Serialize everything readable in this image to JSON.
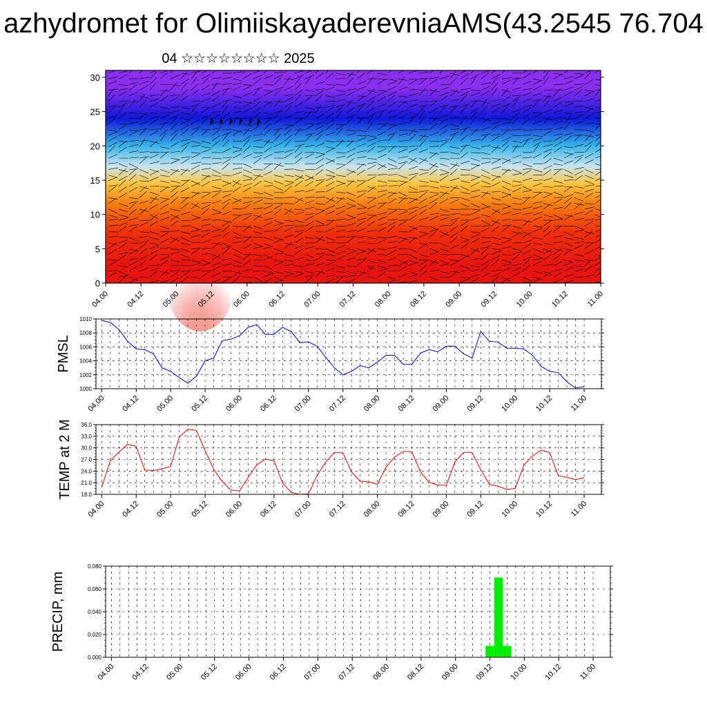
{
  "page": {
    "title": "azhydromet for OlimiiskayaderevniaAMS(43.2545 76.704",
    "subtitle": "04 ☆☆☆☆☆☆☆☆ 2025"
  },
  "chart_data": [
    {
      "type": "heatmap",
      "title": "",
      "description_kind": "time-height cross-section with wind barbs",
      "x_tick_labels": [
        "04.00",
        "04.12",
        "05.00",
        "05.12",
        "06.00",
        "06.12",
        "07.00",
        "07.12",
        "08.00",
        "08.12",
        "09.00",
        "09.12",
        "10.00",
        "10.12",
        "11.00"
      ],
      "y_ticks": [
        0,
        5,
        10,
        15,
        20,
        25,
        30
      ],
      "ylim": [
        0,
        31
      ],
      "color_bands": [
        {
          "from": 0,
          "to": 5,
          "color": "#e81410"
        },
        {
          "from": 5,
          "to": 10,
          "color": "#f0300c"
        },
        {
          "from": 10,
          "to": 13,
          "color": "#f57d10"
        },
        {
          "from": 13,
          "to": 16,
          "color": "#fbc540"
        },
        {
          "from": 16,
          "to": 18,
          "color": "#c8e4f0"
        },
        {
          "from": 18,
          "to": 22,
          "color": "#38b4e8"
        },
        {
          "from": 22,
          "to": 26,
          "color": "#1018d8"
        },
        {
          "from": 26,
          "to": 31,
          "color": "#8a2ef0"
        }
      ]
    },
    {
      "type": "line",
      "ylabel": "PMSL",
      "ylim": [
        1000,
        1010
      ],
      "y_ticks": [
        1000,
        1002,
        1004,
        1006,
        1008,
        1010
      ],
      "x_tick_labels": [
        "04.00",
        "04.12",
        "05.00",
        "05.12",
        "06.00",
        "06.12",
        "07.00",
        "07.12",
        "08.00",
        "08.12",
        "09.00",
        "09.12",
        "10.00",
        "10.12",
        "11.00"
      ],
      "x_range_hours": [
        -2,
        174
      ],
      "line_color": "#0000ff",
      "x_hours": [
        0,
        3,
        6,
        9,
        12,
        15,
        18,
        21,
        24,
        27,
        30,
        33,
        36,
        39,
        42,
        45,
        48,
        51,
        54,
        57,
        60,
        63,
        66,
        69,
        72,
        75,
        78,
        81,
        84,
        87,
        90,
        93,
        96,
        99,
        102,
        105,
        108,
        111,
        114,
        117,
        120,
        123,
        126,
        129,
        132,
        135,
        138,
        141,
        144,
        147,
        150,
        153,
        156,
        159,
        162,
        165,
        168
      ],
      "values": [
        1009.8,
        1009.5,
        1008.5,
        1006.8,
        1005.7,
        1005.6,
        1005.0,
        1003.0,
        1002.5,
        1001.6,
        1000.8,
        1001.8,
        1004.0,
        1004.4,
        1006.9,
        1007.1,
        1007.6,
        1008.8,
        1009.2,
        1007.8,
        1007.8,
        1008.8,
        1008.2,
        1006.6,
        1006.7,
        1006.1,
        1004.5,
        1003.0,
        1002.0,
        1002.5,
        1003.3,
        1003.0,
        1003.8,
        1004.8,
        1004.8,
        1003.5,
        1003.5,
        1005.1,
        1005.6,
        1005.3,
        1006.1,
        1006.1,
        1005.0,
        1004.4,
        1008.2,
        1006.8,
        1006.7,
        1005.8,
        1005.8,
        1005.7,
        1004.8,
        1003.2,
        1002.5,
        1002.3,
        1001.0,
        1000.1,
        1000.3
      ]
    },
    {
      "type": "line",
      "ylabel": "TEMP at 2 M",
      "ylim": [
        18,
        36
      ],
      "y_ticks": [
        18.0,
        21.0,
        24.0,
        27.0,
        30.0,
        33.0,
        36.0
      ],
      "x_tick_labels": [
        "04.00",
        "04.12",
        "05.00",
        "05.12",
        "06.00",
        "06.12",
        "07.00",
        "07.12",
        "08.00",
        "08.12",
        "09.00",
        "09.12",
        "10.00",
        "10.12",
        "11.00"
      ],
      "x_range_hours": [
        -2,
        174
      ],
      "line_color": "#ff0000",
      "x_hours": [
        0,
        3,
        6,
        9,
        12,
        15,
        18,
        21,
        24,
        27,
        30,
        33,
        36,
        39,
        42,
        45,
        48,
        51,
        54,
        57,
        60,
        63,
        66,
        69,
        72,
        75,
        78,
        81,
        84,
        87,
        90,
        93,
        96,
        99,
        102,
        105,
        108,
        111,
        114,
        117,
        120,
        123,
        126,
        129,
        132,
        135,
        138,
        141,
        144,
        147,
        150,
        153,
        156,
        159,
        162,
        165,
        168
      ],
      "values": [
        19.8,
        26.7,
        28.9,
        30.9,
        30.4,
        24.3,
        24.1,
        24.6,
        25.2,
        32.8,
        34.8,
        34.5,
        29.3,
        24.5,
        21.3,
        19.1,
        18.9,
        22.4,
        25.6,
        27.1,
        26.7,
        20.9,
        18.5,
        18.0,
        18.1,
        22.9,
        26.3,
        28.8,
        28.7,
        23.8,
        21.4,
        21.2,
        20.6,
        25.0,
        27.6,
        29.1,
        29.0,
        23.8,
        21.1,
        20.4,
        20.3,
        26.4,
        28.8,
        28.8,
        24.4,
        20.6,
        20.1,
        19.3,
        19.5,
        25.5,
        27.9,
        29.4,
        28.8,
        22.8,
        22.4,
        21.8,
        22.3
      ]
    },
    {
      "type": "bar",
      "ylabel": "PRECIP, mm",
      "ylim": [
        0,
        0.08
      ],
      "y_ticks": [
        0.0,
        0.02,
        0.04,
        0.06,
        0.08
      ],
      "x_tick_labels": [
        "04.00",
        "04.12",
        "05.00",
        "05.12",
        "06.00",
        "06.12",
        "07.00",
        "07.12",
        "08.00",
        "08.12",
        "09.00",
        "09.12",
        "10.00",
        "10.12",
        "11.00"
      ],
      "x_range_hours": [
        -2,
        174
      ],
      "bar_color": "#00ee00",
      "x_hours": [
        132,
        135,
        138
      ],
      "values": [
        0.01,
        0.07,
        0.01
      ]
    }
  ]
}
